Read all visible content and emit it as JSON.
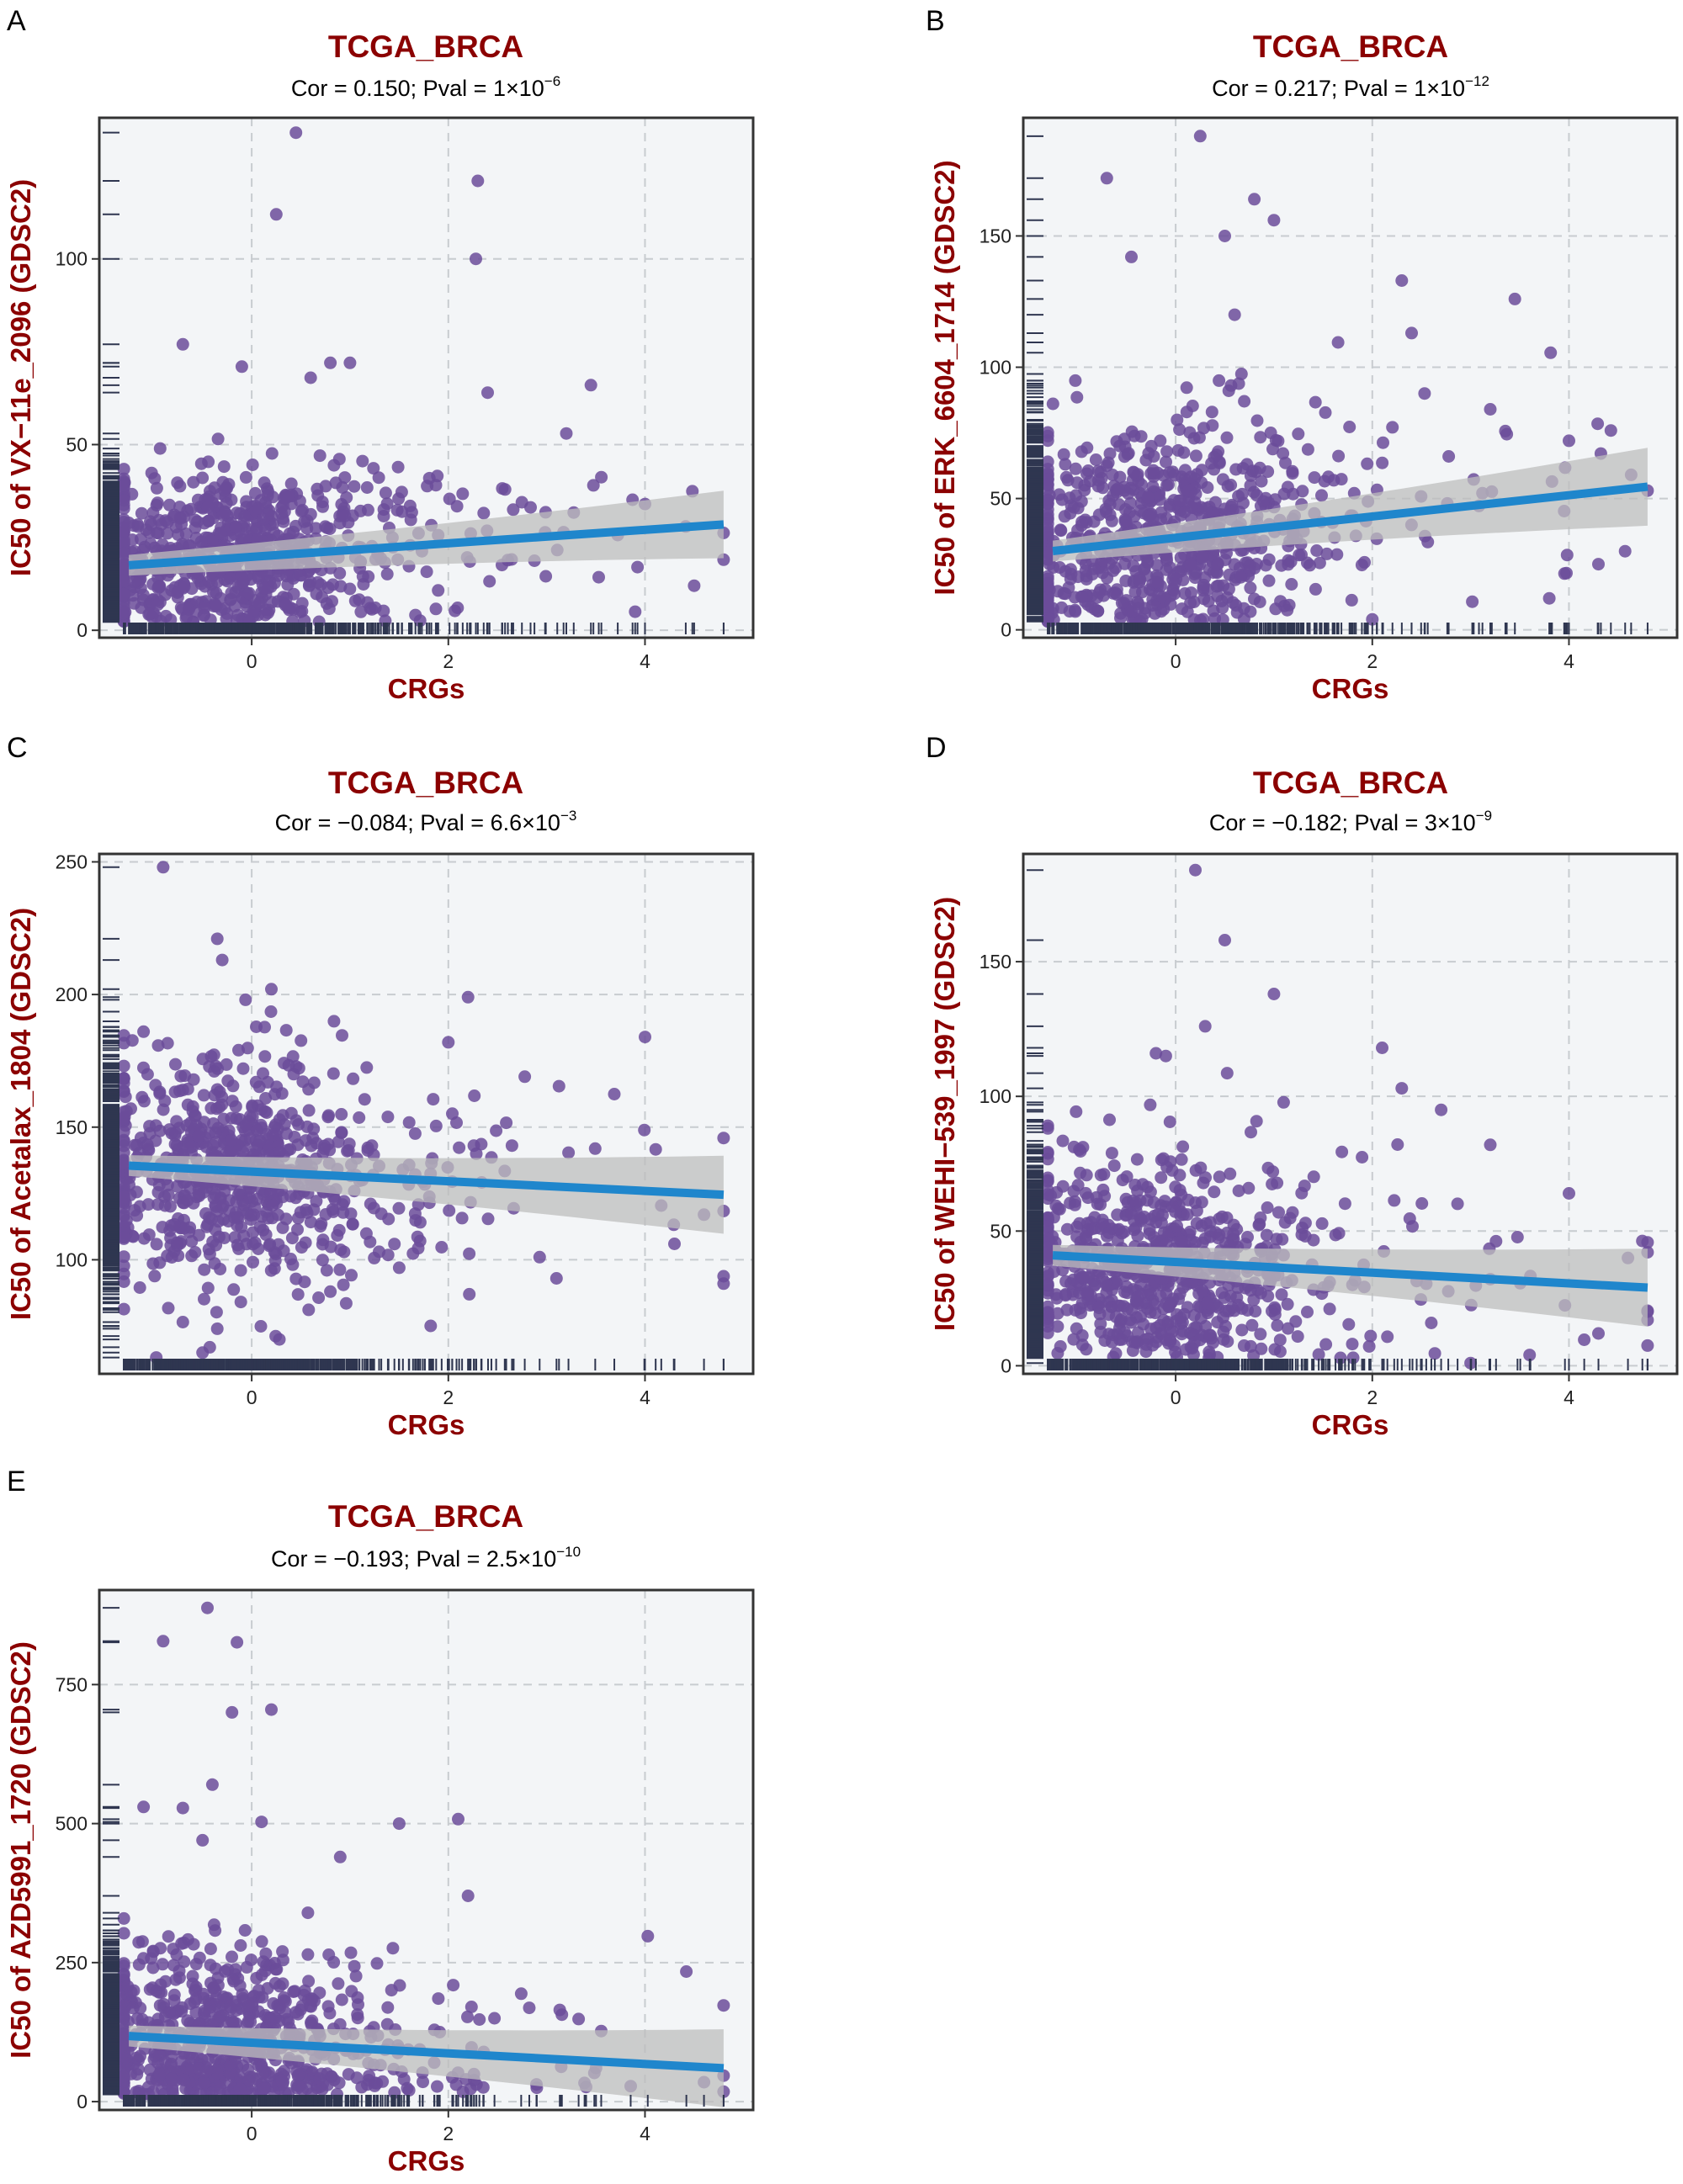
{
  "colors": {
    "title": "#8b0000",
    "points": "#6b4c9a",
    "fit_line": "#1f86cc",
    "confidence_band": "#bdbdbd",
    "rug": "#2f3650",
    "panel_bg": "#f3f5f7",
    "grid": "#c8ccd0"
  },
  "chart_data": [
    {
      "panel": "A",
      "type": "scatter",
      "title": "TCGA_BRCA",
      "subtitle": {
        "cor": "Cor = 0.150; Pval = 1",
        "times": "×",
        "base": "10",
        "exp": "−6"
      },
      "xlabel": "CRGs",
      "ylabel": "IC50 of VX−11e_2096 (GDSC2)",
      "xlim": [
        -1.55,
        5.1
      ],
      "ylim": [
        -2,
        138
      ],
      "xticks": [
        0,
        2,
        4
      ],
      "yticks": [
        0,
        50,
        100
      ],
      "fit": {
        "x": [
          -1.25,
          4.8
        ],
        "y": [
          17.5,
          28.5
        ],
        "ci_start": 2.0,
        "ci_end": 4.5
      },
      "cloud": {
        "x_center": -0.3,
        "x_spread": 0.75,
        "y_center": 19,
        "y_spread": 12,
        "n": 750
      },
      "outliers": [
        [
          0.45,
          134
        ],
        [
          0.25,
          112
        ],
        [
          2.3,
          121
        ],
        [
          2.28,
          100
        ],
        [
          -0.7,
          77
        ],
        [
          -0.1,
          71
        ],
        [
          0.8,
          72
        ],
        [
          1.0,
          72
        ],
        [
          0.6,
          68
        ],
        [
          2.4,
          64
        ],
        [
          3.45,
          66
        ],
        [
          3.2,
          53
        ],
        [
          4.0,
          34
        ],
        [
          4.8,
          19
        ],
        [
          4.5,
          12
        ],
        [
          3.9,
          5
        ]
      ],
      "grid": true,
      "legend": "none"
    },
    {
      "panel": "B",
      "type": "scatter",
      "title": "TCGA_BRCA",
      "subtitle": {
        "cor": "Cor = 0.217; Pval = 1",
        "times": "×",
        "base": "10",
        "exp": "−12"
      },
      "xlabel": "CRGs",
      "ylabel": "IC50 of ERK_6604_1714 (GDSC2)",
      "xlim": [
        -1.55,
        5.1
      ],
      "ylim": [
        -3,
        195
      ],
      "xticks": [
        0,
        2,
        4
      ],
      "yticks": [
        0,
        50,
        100,
        150
      ],
      "fit": {
        "x": [
          -1.25,
          4.8
        ],
        "y": [
          30,
          54.5
        ],
        "ci_start": 2.0,
        "ci_end": 5.5
      },
      "cloud": {
        "x_center": -0.3,
        "x_spread": 0.75,
        "y_center": 38,
        "y_spread": 22,
        "n": 750
      },
      "outliers": [
        [
          0.25,
          188
        ],
        [
          -0.7,
          172
        ],
        [
          0.8,
          164
        ],
        [
          1.0,
          156
        ],
        [
          0.5,
          150
        ],
        [
          -0.45,
          142
        ],
        [
          2.3,
          133
        ],
        [
          3.45,
          126
        ],
        [
          0.6,
          120
        ],
        [
          2.4,
          113
        ],
        [
          3.2,
          84
        ],
        [
          4.0,
          72
        ],
        [
          4.8,
          53
        ],
        [
          4.3,
          25
        ],
        [
          3.8,
          12
        ],
        [
          2.0,
          4
        ]
      ],
      "grid": true,
      "legend": "none"
    },
    {
      "panel": "C",
      "type": "scatter",
      "title": "TCGA_BRCA",
      "subtitle": {
        "cor": "Cor = −0.084; Pval = 6.6",
        "times": "×",
        "base": "10",
        "exp": "−3"
      },
      "xlabel": "CRGs",
      "ylabel": "IC50 of Acetalax_1804 (GDSC2)",
      "xlim": [
        -1.55,
        5.1
      ],
      "ylim": [
        57,
        253
      ],
      "xticks": [
        0,
        2,
        4
      ],
      "yticks": [
        100,
        150,
        200,
        250
      ],
      "fit": {
        "x": [
          -1.25,
          4.8
        ],
        "y": [
          135.5,
          124.5
        ],
        "ci_start": 2.0,
        "ci_end": 5.5
      },
      "cloud": {
        "x_center": -0.3,
        "x_spread": 0.75,
        "y_center": 134,
        "y_spread": 22,
        "n": 750
      },
      "outliers": [
        [
          -0.9,
          248
        ],
        [
          -0.35,
          221
        ],
        [
          -0.3,
          213
        ],
        [
          0.2,
          202
        ],
        [
          2.2,
          199
        ],
        [
          4.0,
          184
        ],
        [
          4.8,
          91
        ],
        [
          4.6,
          117
        ],
        [
          0.8,
          88
        ],
        [
          -0.35,
          74
        ],
        [
          -0.5,
          65
        ],
        [
          1.5,
          97
        ],
        [
          3.1,
          93
        ],
        [
          4.3,
          106
        ],
        [
          -1.1,
          186
        ],
        [
          2.0,
          182
        ]
      ],
      "grid": true,
      "legend": "none"
    },
    {
      "panel": "D",
      "type": "scatter",
      "title": "TCGA_BRCA",
      "subtitle": {
        "cor": "Cor = −0.182; Pval = 3",
        "times": "×",
        "base": "10",
        "exp": "−9"
      },
      "xlabel": "CRGs",
      "ylabel": "IC50 of WEHI−539_1997 (GDSC2)",
      "xlim": [
        -1.55,
        5.1
      ],
      "ylim": [
        -3,
        190
      ],
      "xticks": [
        0,
        2,
        4
      ],
      "yticks": [
        0,
        50,
        100,
        150
      ],
      "fit": {
        "x": [
          -1.25,
          4.8
        ],
        "y": [
          41,
          29
        ],
        "ci_start": 2.0,
        "ci_end": 5.5
      },
      "cloud": {
        "x_center": -0.3,
        "x_spread": 0.75,
        "y_center": 40,
        "y_spread": 20,
        "n": 750
      },
      "outliers": [
        [
          0.2,
          184
        ],
        [
          0.5,
          158
        ],
        [
          1.0,
          138
        ],
        [
          0.3,
          126
        ],
        [
          2.1,
          118
        ],
        [
          2.3,
          103
        ],
        [
          3.2,
          82
        ],
        [
          2.7,
          95
        ],
        [
          4.0,
          64
        ],
        [
          4.8,
          17
        ],
        [
          4.6,
          40
        ],
        [
          -0.2,
          116
        ],
        [
          -0.1,
          115
        ],
        [
          3.0,
          1
        ],
        [
          3.6,
          4
        ],
        [
          4.3,
          12
        ]
      ],
      "grid": true,
      "legend": "none"
    },
    {
      "panel": "E",
      "type": "scatter",
      "title": "TCGA_BRCA",
      "subtitle": {
        "cor": "Cor = −0.193; Pval = 2.5",
        "times": "×",
        "base": "10",
        "exp": "−10"
      },
      "xlabel": "CRGs",
      "ylabel": "IC50 of AZD5991_1720 (GDSC2)",
      "xlim": [
        -1.55,
        5.1
      ],
      "ylim": [
        -15,
        920
      ],
      "xticks": [
        0,
        2,
        4
      ],
      "yticks": [
        0,
        250,
        500,
        750
      ],
      "fit": {
        "x": [
          -1.25,
          4.8
        ],
        "y": [
          118,
          60
        ],
        "ci_start": 2.0,
        "ci_end": 5.5
      },
      "cloud": {
        "x_center": -0.3,
        "x_spread": 0.75,
        "y_center": 115,
        "y_spread": 85,
        "n": 750
      },
      "outliers": [
        [
          -0.45,
          888
        ],
        [
          -0.9,
          828
        ],
        [
          -0.15,
          826
        ],
        [
          0.2,
          705
        ],
        [
          -0.2,
          700
        ],
        [
          -0.4,
          570
        ],
        [
          -1.1,
          530
        ],
        [
          -0.7,
          528
        ],
        [
          0.1,
          503
        ],
        [
          2.1,
          508
        ],
        [
          1.5,
          500
        ],
        [
          -0.5,
          470
        ],
        [
          2.2,
          370
        ],
        [
          0.9,
          440
        ],
        [
          4.8,
          173
        ],
        [
          4.6,
          35
        ]
      ],
      "grid": true,
      "legend": "none"
    }
  ]
}
